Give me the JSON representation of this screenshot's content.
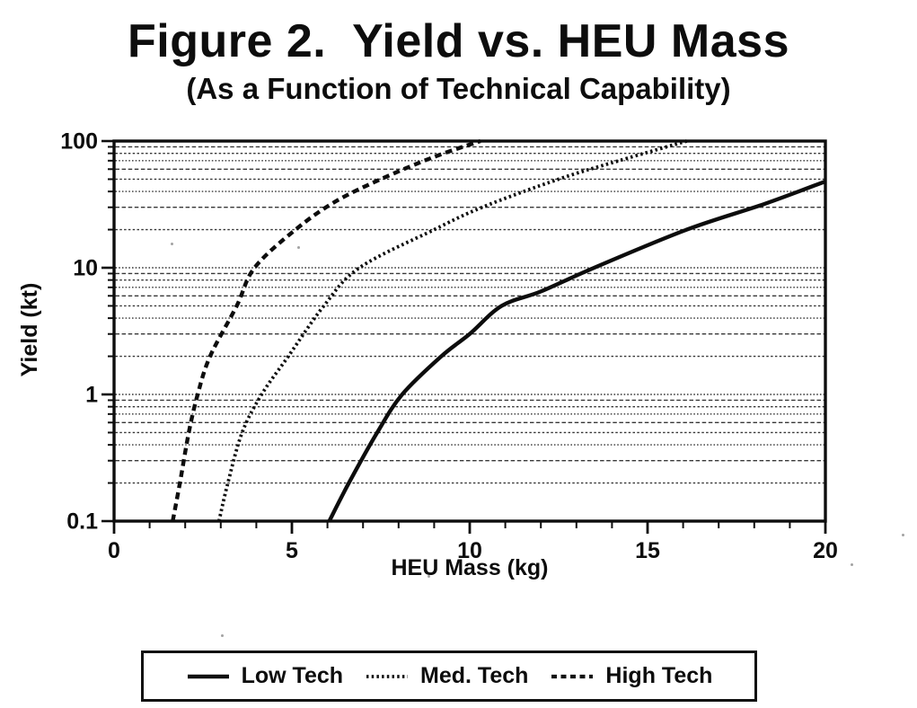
{
  "chart_data": {
    "type": "line",
    "title": "Figure 2.  Yield vs. HEU Mass",
    "subtitle": "(As a Function of Technical Capability)",
    "xlabel": "HEU Mass (kg)",
    "ylabel": "Yield (kt)",
    "x_axis": {
      "scale": "linear",
      "min": 0,
      "max": 20,
      "tick_values": [
        0,
        5,
        10,
        15,
        20
      ],
      "tick_labels": [
        "0",
        "5",
        "10",
        "15",
        "20"
      ],
      "minor_tick_step": 1
    },
    "y_axis": {
      "scale": "log",
      "min": 0.1,
      "max": 100,
      "tick_values": [
        100,
        10,
        1,
        0.1
      ],
      "tick_labels": [
        "100",
        "10",
        "1",
        "0.1"
      ]
    },
    "grid": {
      "horizontal": true,
      "vertical": false,
      "style": "dotted",
      "positions": "every log minor and major line between 0.2 and 90"
    },
    "legend": {
      "position": "bottom-center-box"
    },
    "series": [
      {
        "name": "Low Tech",
        "line_style": "solid",
        "points": [
          [
            6.05,
            0.1
          ],
          [
            6.6,
            0.2
          ],
          [
            7.4,
            0.5
          ],
          [
            8.1,
            1
          ],
          [
            9.2,
            2
          ],
          [
            10.0,
            3
          ],
          [
            10.9,
            5
          ],
          [
            12.0,
            6.5
          ],
          [
            13.5,
            10
          ],
          [
            16.1,
            20
          ],
          [
            18.3,
            32
          ],
          [
            20.0,
            48
          ]
        ]
      },
      {
        "name": "Med. Tech",
        "line_style": "fine-dotted",
        "points": [
          [
            2.95,
            0.1
          ],
          [
            3.2,
            0.2
          ],
          [
            3.6,
            0.5
          ],
          [
            4.15,
            1
          ],
          [
            4.9,
            2
          ],
          [
            5.9,
            5
          ],
          [
            6.9,
            10
          ],
          [
            9.0,
            20
          ],
          [
            10.35,
            30
          ],
          [
            12.5,
            50
          ],
          [
            14.2,
            70
          ],
          [
            16.1,
            100
          ]
        ]
      },
      {
        "name": "High Tech",
        "line_style": "dashed",
        "points": [
          [
            1.65,
            0.1
          ],
          [
            1.85,
            0.2
          ],
          [
            2.1,
            0.5
          ],
          [
            2.35,
            1
          ],
          [
            2.7,
            2
          ],
          [
            3.45,
            5
          ],
          [
            3.95,
            10
          ],
          [
            5.1,
            20
          ],
          [
            6.2,
            33
          ],
          [
            7.5,
            50
          ],
          [
            9.0,
            75
          ],
          [
            10.3,
            100
          ]
        ]
      }
    ]
  }
}
